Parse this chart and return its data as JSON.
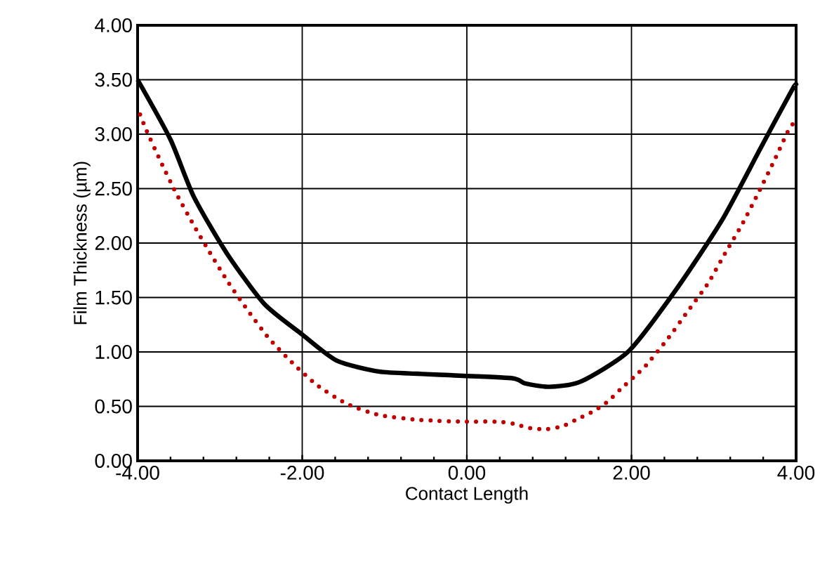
{
  "chart_data": {
    "type": "line",
    "xlabel": "Contact Length",
    "ylabel": "Film Thickness (µm)",
    "xlim": [
      -4,
      4
    ],
    "ylim": [
      0,
      4
    ],
    "xticks": [
      {
        "value": -4,
        "label": "-4.00"
      },
      {
        "value": -2,
        "label": "-2.00"
      },
      {
        "value": 0,
        "label": "0.00"
      },
      {
        "value": 2,
        "label": "2.00"
      },
      {
        "value": 4,
        "label": "4.00"
      }
    ],
    "yticks": [
      {
        "value": 0,
        "label": "0.00"
      },
      {
        "value": 0.5,
        "label": "0.50"
      },
      {
        "value": 1,
        "label": "1.00"
      },
      {
        "value": 1.5,
        "label": "1.50"
      },
      {
        "value": 2,
        "label": "2.00"
      },
      {
        "value": 2.5,
        "label": "2.50"
      },
      {
        "value": 3,
        "label": "3.00"
      },
      {
        "value": 3.5,
        "label": "3.50"
      },
      {
        "value": 4,
        "label": "4.00"
      }
    ],
    "grid": true,
    "series": [
      {
        "color": "#000000",
        "line_style": "solid",
        "x": [
          -4,
          -3.6,
          -3.32,
          -2.92,
          -2.46,
          -2,
          -1.58,
          -1.07,
          -0.6,
          -0.33,
          0.54,
          0.71,
          1.0,
          1.39,
          1.97,
          2.54,
          3.1,
          3.56,
          3.96,
          4
        ],
        "values": [
          3.5,
          2.95,
          2.43,
          1.91,
          1.44,
          1.16,
          0.92,
          0.82,
          0.8,
          0.79,
          0.76,
          0.71,
          0.68,
          0.73,
          1.01,
          1.57,
          2.21,
          2.86,
          3.42,
          3.45
        ]
      },
      {
        "color": "#c00000",
        "line_style": "dotted",
        "x": [
          -3.97,
          -3.89,
          -3.72,
          -3.54,
          -3.33,
          -3.12,
          -2.9,
          -2.66,
          -2.41,
          -2.12,
          -1.81,
          -1.45,
          -1.06,
          -0.65,
          -0.43,
          -0.07,
          0.36,
          0.57,
          0.77,
          0.96,
          1.17,
          1.36,
          1.55,
          1.72,
          1.87,
          2.03,
          2.18,
          2.44,
          2.69,
          2.93,
          3.14,
          3.35,
          3.54,
          3.73,
          3.91,
          3.97
        ],
        "values": [
          3.18,
          3.03,
          2.75,
          2.47,
          2.18,
          1.91,
          1.64,
          1.38,
          1.13,
          0.9,
          0.69,
          0.52,
          0.42,
          0.38,
          0.37,
          0.36,
          0.36,
          0.34,
          0.3,
          0.29,
          0.32,
          0.39,
          0.46,
          0.55,
          0.66,
          0.77,
          0.88,
          1.12,
          1.38,
          1.63,
          1.91,
          2.18,
          2.46,
          2.75,
          3.04,
          3.1
        ]
      }
    ]
  }
}
